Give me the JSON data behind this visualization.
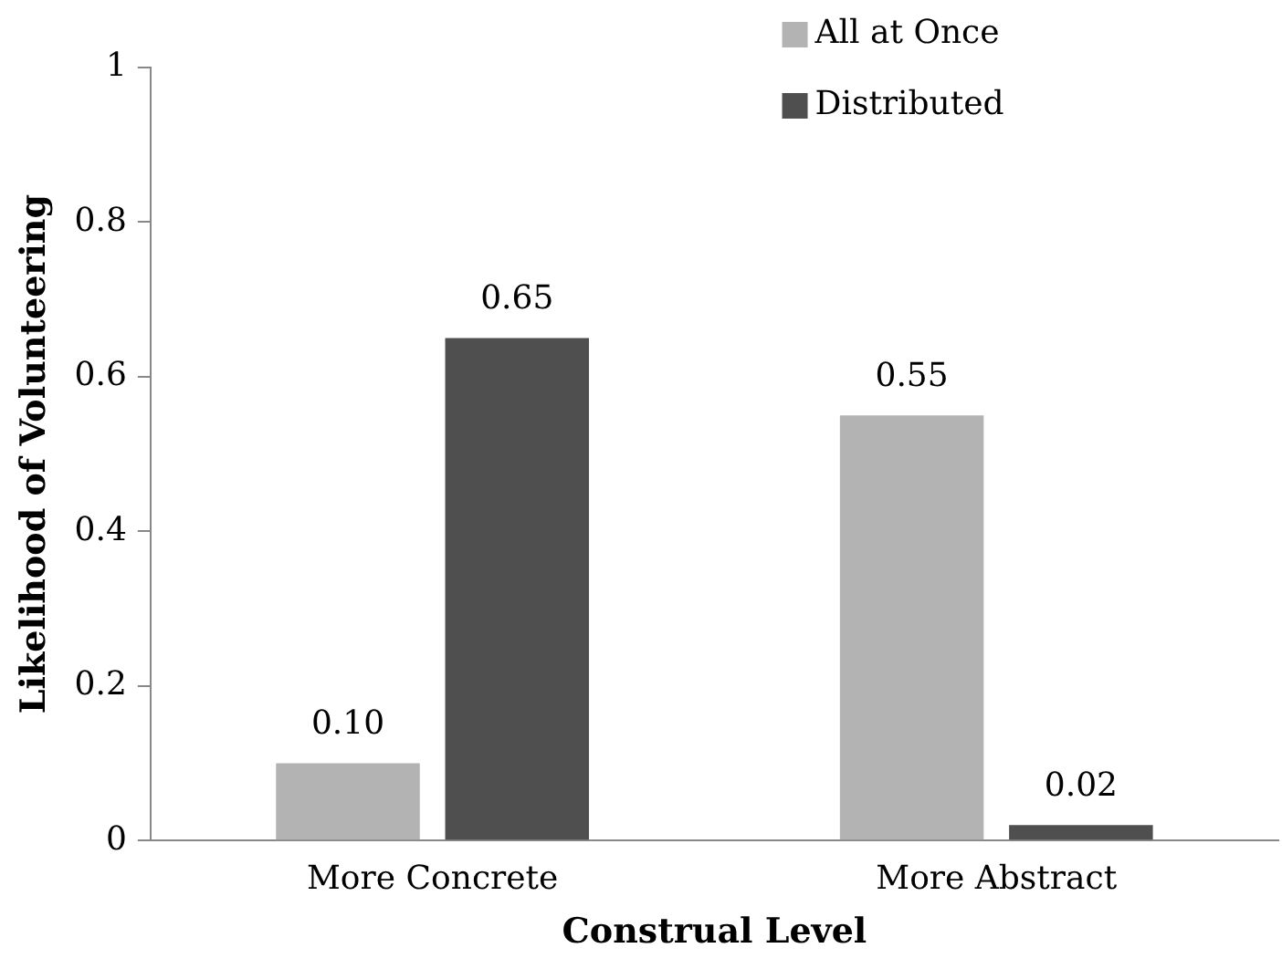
{
  "chart_data": {
    "type": "bar",
    "xlabel": "Construal Level",
    "ylabel": "Likelihood of Volunteering",
    "categories": [
      "More Concrete",
      "More Abstract"
    ],
    "series": [
      {
        "name": "All at Once",
        "color": "#b3b3b3",
        "values": [
          0.1,
          0.55
        ],
        "value_labels": [
          "0.10",
          "0.55"
        ]
      },
      {
        "name": "Distributed",
        "color": "#4f4f4f",
        "values": [
          0.65,
          0.02
        ],
        "value_labels": [
          "0.65",
          "0.02"
        ]
      }
    ],
    "ylim": [
      0,
      1
    ],
    "yticks": [
      0,
      0.2,
      0.4,
      0.6,
      0.8,
      1
    ],
    "grid": false,
    "legend": "top right"
  }
}
